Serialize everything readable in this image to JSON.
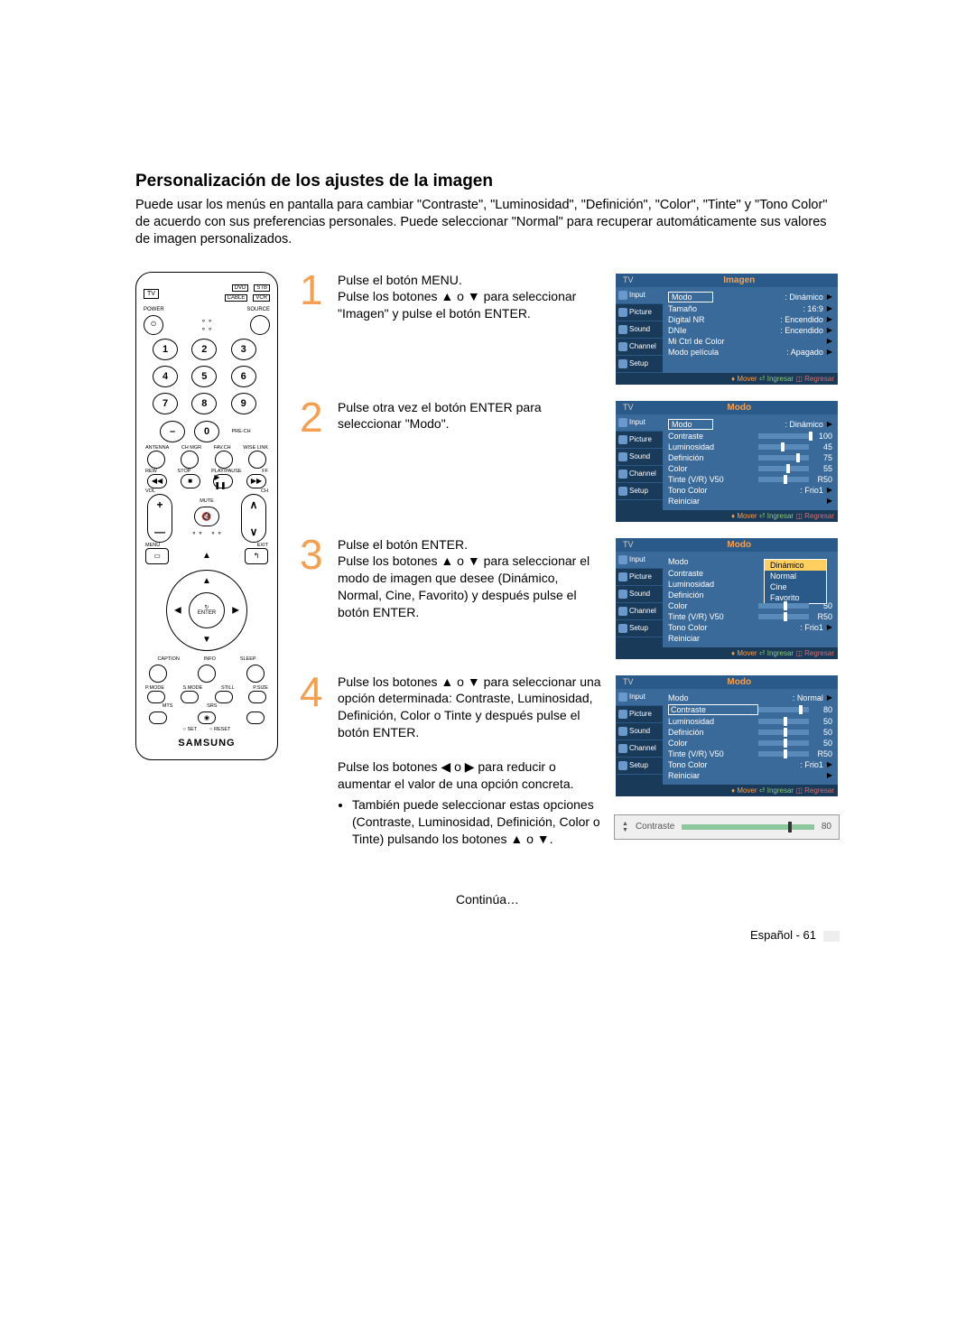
{
  "title": "Personalización de los ajustes de la imagen",
  "intro": "Puede usar los menús en pantalla para cambiar \"Contraste\", \"Luminosidad\", \"Definición\", \"Color\", \"Tinte\" y \"Tono Color\" de acuerdo con sus preferencias personales. Puede seleccionar \"Normal\" para recuperar automáticamente sus valores de imagen personalizados.",
  "remote": {
    "top_dvd": "DVD",
    "top_stb": "STB",
    "top_cable": "CABLE",
    "top_vcr": "VCR",
    "tv": "TV",
    "power": "POWER",
    "source": "SOURCE",
    "nums": [
      "1",
      "2",
      "3",
      "4",
      "5",
      "6",
      "7",
      "8",
      "9"
    ],
    "dash": "–",
    "zero": "0",
    "prech": "PRE-CH",
    "labels4": [
      "ANTENNA",
      "CH MGR",
      "FAV.CH",
      "WISE LINK"
    ],
    "trans_labels": [
      "REW",
      "STOP",
      "PLAY/PAUSE",
      "FF"
    ],
    "trans": [
      "◀◀",
      "■",
      "▶ ❚❚",
      "▶▶"
    ],
    "vol": "VOL",
    "ch": "CH",
    "mute": "MUTE",
    "menu": "MENU",
    "exit": "EXIT",
    "enter": "ENTER",
    "cycle": "↻",
    "labels3a": [
      "CAPTION",
      "INFO",
      "SLEEP"
    ],
    "labels4b": [
      "P.MODE",
      "S.MODE",
      "STILL",
      "P.SIZE"
    ],
    "mts": "MTS",
    "srs": "SRS",
    "rec": "●",
    "set": "○ SET",
    "reset": "○ RESET",
    "brand": "SAMSUNG"
  },
  "steps": [
    {
      "num": "1",
      "text": "Pulse el botón MENU.\nPulse los botones ▲ o ▼ para seleccionar \"Imagen\" y pulse el botón ENTER."
    },
    {
      "num": "2",
      "text": "Pulse otra vez el botón ENTER para seleccionar \"Modo\"."
    },
    {
      "num": "3",
      "text": "Pulse el botón ENTER.\nPulse los botones ▲ o ▼ para seleccionar el modo de imagen que desee (Dinámico, Normal, Cine, Favorito) y después pulse el botón ENTER."
    },
    {
      "num": "4",
      "text": "Pulse los botones ▲ o ▼ para seleccionar una opción determinada: Contraste, Luminosidad, Definición, Color o Tinte y después pulse el botón ENTER.",
      "text2": "Pulse los botones ◀ o ▶ para reducir o aumentar el valor de una opción concreta.",
      "bullet": "También puede seleccionar estas opciones (Contraste, Luminosidad, Definición, Color o Tinte) pulsando los botones ▲ o ▼."
    }
  ],
  "osd_common": {
    "tv": "TV",
    "side": [
      "Input",
      "Picture",
      "Sound",
      "Channel",
      "Setup"
    ],
    "footer_mv": "♦ Mover",
    "footer_ing": "⏎ Ingresar",
    "footer_reg": "◫ Regresar"
  },
  "osd1": {
    "title": "Imagen",
    "rows": [
      {
        "l": "Modo",
        "v": ": Dinámico",
        "boxed": true,
        "arrow": true
      },
      {
        "l": "Tamaño",
        "v": ": 16:9",
        "arrow": true
      },
      {
        "l": "Digital NR",
        "v": ": Encendido",
        "arrow": true
      },
      {
        "l": "DNIe",
        "v": ": Encendido",
        "arrow": true
      },
      {
        "l": "Mi Ctrl de Color",
        "v": "",
        "arrow": true
      },
      {
        "l": "Modo película",
        "v": ": Apagado",
        "arrow": true
      }
    ]
  },
  "osd2": {
    "title": "Modo",
    "rows": [
      {
        "l": "Modo",
        "v": ": Dinámico",
        "boxed": true,
        "arrow": true
      },
      {
        "l": "Contraste",
        "slider": 100,
        "sv": "100"
      },
      {
        "l": "Luminosidad",
        "slider": 45,
        "sv": "45"
      },
      {
        "l": "Definición",
        "slider": 75,
        "sv": "75"
      },
      {
        "l": "Color",
        "slider": 55,
        "sv": "55"
      },
      {
        "l": "Tinte (V/R) V50",
        "slider": 50,
        "sv": "R50"
      },
      {
        "l": "Tono Color",
        "v": ": Frio1",
        "arrow": true
      },
      {
        "l": "Reiniciar",
        "v": "",
        "arrow": true
      }
    ]
  },
  "osd3": {
    "title": "Modo",
    "dropdown": [
      "Dinámico",
      "Normal",
      "Cine",
      "Favorito"
    ],
    "rows": [
      {
        "l": "Modo",
        "v": ""
      },
      {
        "l": "Contraste",
        "v": ""
      },
      {
        "l": "Luminosidad",
        "v": ""
      },
      {
        "l": "Definición",
        "v": ""
      },
      {
        "l": "Color",
        "slider": 50,
        "sv": "50"
      },
      {
        "l": "Tinte (V/R) V50",
        "slider": 50,
        "sv": "R50"
      },
      {
        "l": "Tono Color",
        "v": ": Frio1",
        "arrow": true
      },
      {
        "l": "Reiniciar",
        "v": ""
      }
    ]
  },
  "osd4": {
    "title": "Modo",
    "rows": [
      {
        "l": "Modo",
        "v": ": Normal",
        "arrow": true
      },
      {
        "l": "Contraste",
        "slider": 80,
        "sv": "80",
        "boxed": true
      },
      {
        "l": "Luminosidad",
        "slider": 50,
        "sv": "50"
      },
      {
        "l": "Definición",
        "slider": 50,
        "sv": "50"
      },
      {
        "l": "Color",
        "slider": 50,
        "sv": "50"
      },
      {
        "l": "Tinte (V/R) V50",
        "slider": 50,
        "sv": "R50"
      },
      {
        "l": "Tono Color",
        "v": ": Frio1",
        "arrow": true
      },
      {
        "l": "Reiniciar",
        "v": "",
        "arrow": true
      }
    ]
  },
  "contrast_bar": {
    "label": "Contraste",
    "value": "80",
    "pct": 80
  },
  "continua": "Continúa…",
  "footer": "Español - 61"
}
